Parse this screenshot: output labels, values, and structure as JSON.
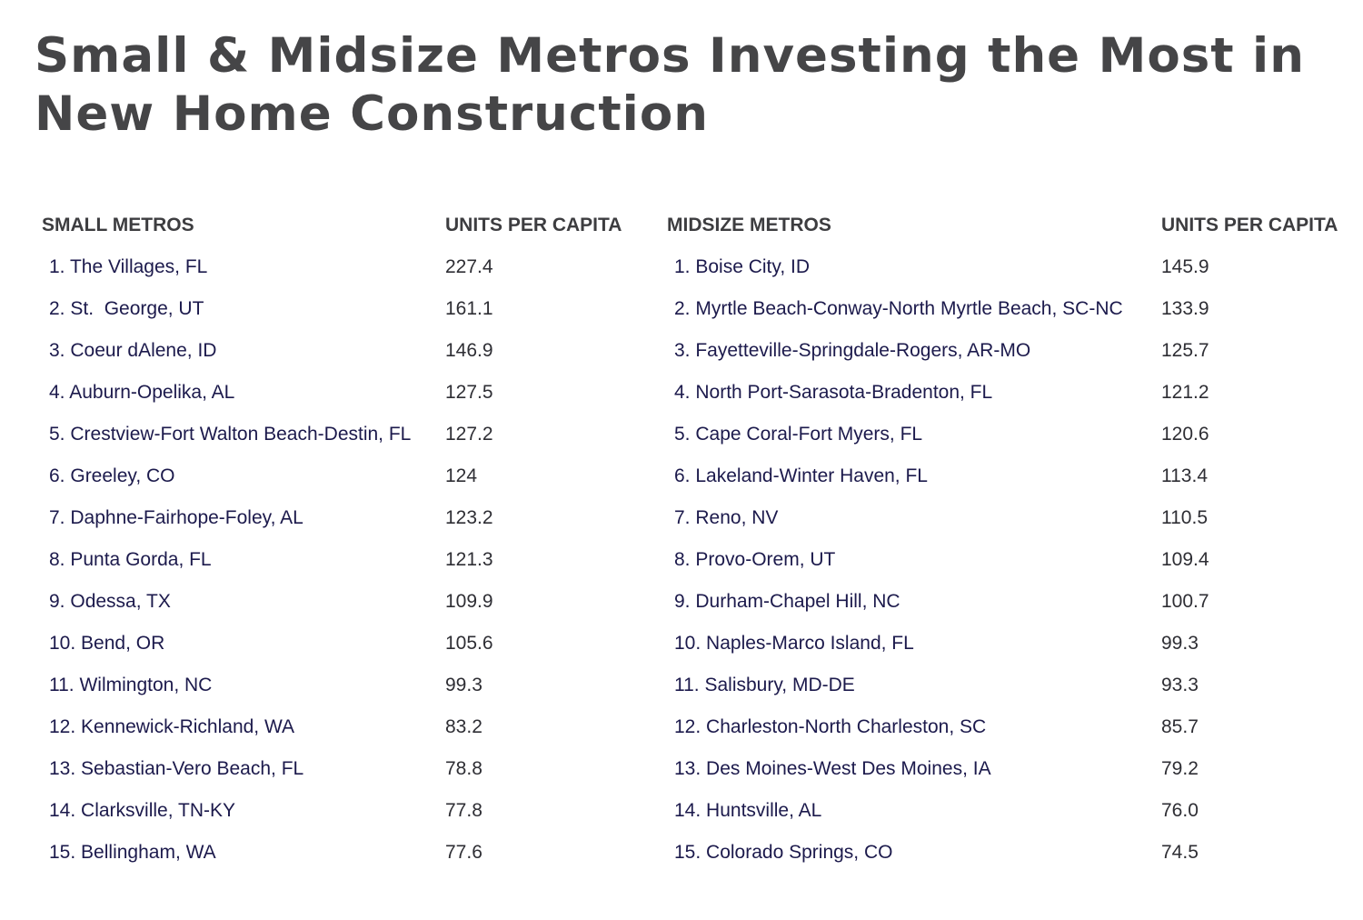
{
  "title": "Small & Midsize Metros Investing the Most in New Home Construction",
  "chart_data": [
    {
      "type": "table",
      "columns": [
        "SMALL METROS",
        "UNITS PER CAPITA"
      ],
      "rows": [
        {
          "rank": "1.",
          "name": "The Villages, FL",
          "value": "227.4"
        },
        {
          "rank": "2.",
          "name": "St.  George, UT",
          "value": "161.1"
        },
        {
          "rank": "3.",
          "name": "Coeur dAlene, ID",
          "value": "146.9"
        },
        {
          "rank": "4.",
          "name": "Auburn-Opelika, AL",
          "value": "127.5"
        },
        {
          "rank": "5.",
          "name": "Crestview-Fort Walton Beach-Destin, FL",
          "value": "127.2"
        },
        {
          "rank": "6.",
          "name": "Greeley, CO",
          "value": "124"
        },
        {
          "rank": "7.",
          "name": "Daphne-Fairhope-Foley, AL",
          "value": "123.2"
        },
        {
          "rank": "8.",
          "name": "Punta Gorda, FL",
          "value": "121.3"
        },
        {
          "rank": "9.",
          "name": "Odessa, TX",
          "value": "109.9"
        },
        {
          "rank": "10.",
          "name": "Bend, OR",
          "value": "105.6"
        },
        {
          "rank": "11.",
          "name": "Wilmington, NC",
          "value": "99.3"
        },
        {
          "rank": "12.",
          "name": "Kennewick-Richland, WA",
          "value": "83.2"
        },
        {
          "rank": "13.",
          "name": "Sebastian-Vero Beach, FL",
          "value": "78.8"
        },
        {
          "rank": "14.",
          "name": "Clarksville, TN-KY",
          "value": "77.8"
        },
        {
          "rank": "15.",
          "name": "Bellingham, WA",
          "value": "77.6"
        }
      ]
    },
    {
      "type": "table",
      "columns": [
        "MIDSIZE METROS",
        "UNITS PER CAPITA"
      ],
      "rows": [
        {
          "rank": "1.",
          "name": "Boise City, ID",
          "value": "145.9"
        },
        {
          "rank": "2.",
          "name": "Myrtle Beach-Conway-North Myrtle Beach, SC-NC",
          "value": "133.9"
        },
        {
          "rank": "3.",
          "name": "Fayetteville-Springdale-Rogers, AR-MO",
          "value": "125.7"
        },
        {
          "rank": "4.",
          "name": "North Port-Sarasota-Bradenton, FL",
          "value": "121.2"
        },
        {
          "rank": "5.",
          "name": "Cape Coral-Fort Myers, FL",
          "value": "120.6"
        },
        {
          "rank": "6.",
          "name": "Lakeland-Winter Haven, FL",
          "value": "113.4"
        },
        {
          "rank": "7.",
          "name": "Reno, NV",
          "value": "110.5"
        },
        {
          "rank": "8.",
          "name": "Provo-Orem, UT",
          "value": "109.4"
        },
        {
          "rank": "9.",
          "name": "Durham-Chapel Hill, NC",
          "value": "100.7"
        },
        {
          "rank": "10.",
          "name": "Naples-Marco Island, FL",
          "value": "99.3"
        },
        {
          "rank": "11.",
          "name": "Salisbury, MD-DE",
          "value": "93.3"
        },
        {
          "rank": "12.",
          "name": "Charleston-North Charleston, SC",
          "value": "85.7"
        },
        {
          "rank": "13.",
          "name": "Des Moines-West Des Moines, IA",
          "value": "79.2"
        },
        {
          "rank": "14.",
          "name": "Huntsville, AL",
          "value": "76.0"
        },
        {
          "rank": "15.",
          "name": "Colorado Springs, CO",
          "value": "74.5"
        }
      ]
    }
  ]
}
